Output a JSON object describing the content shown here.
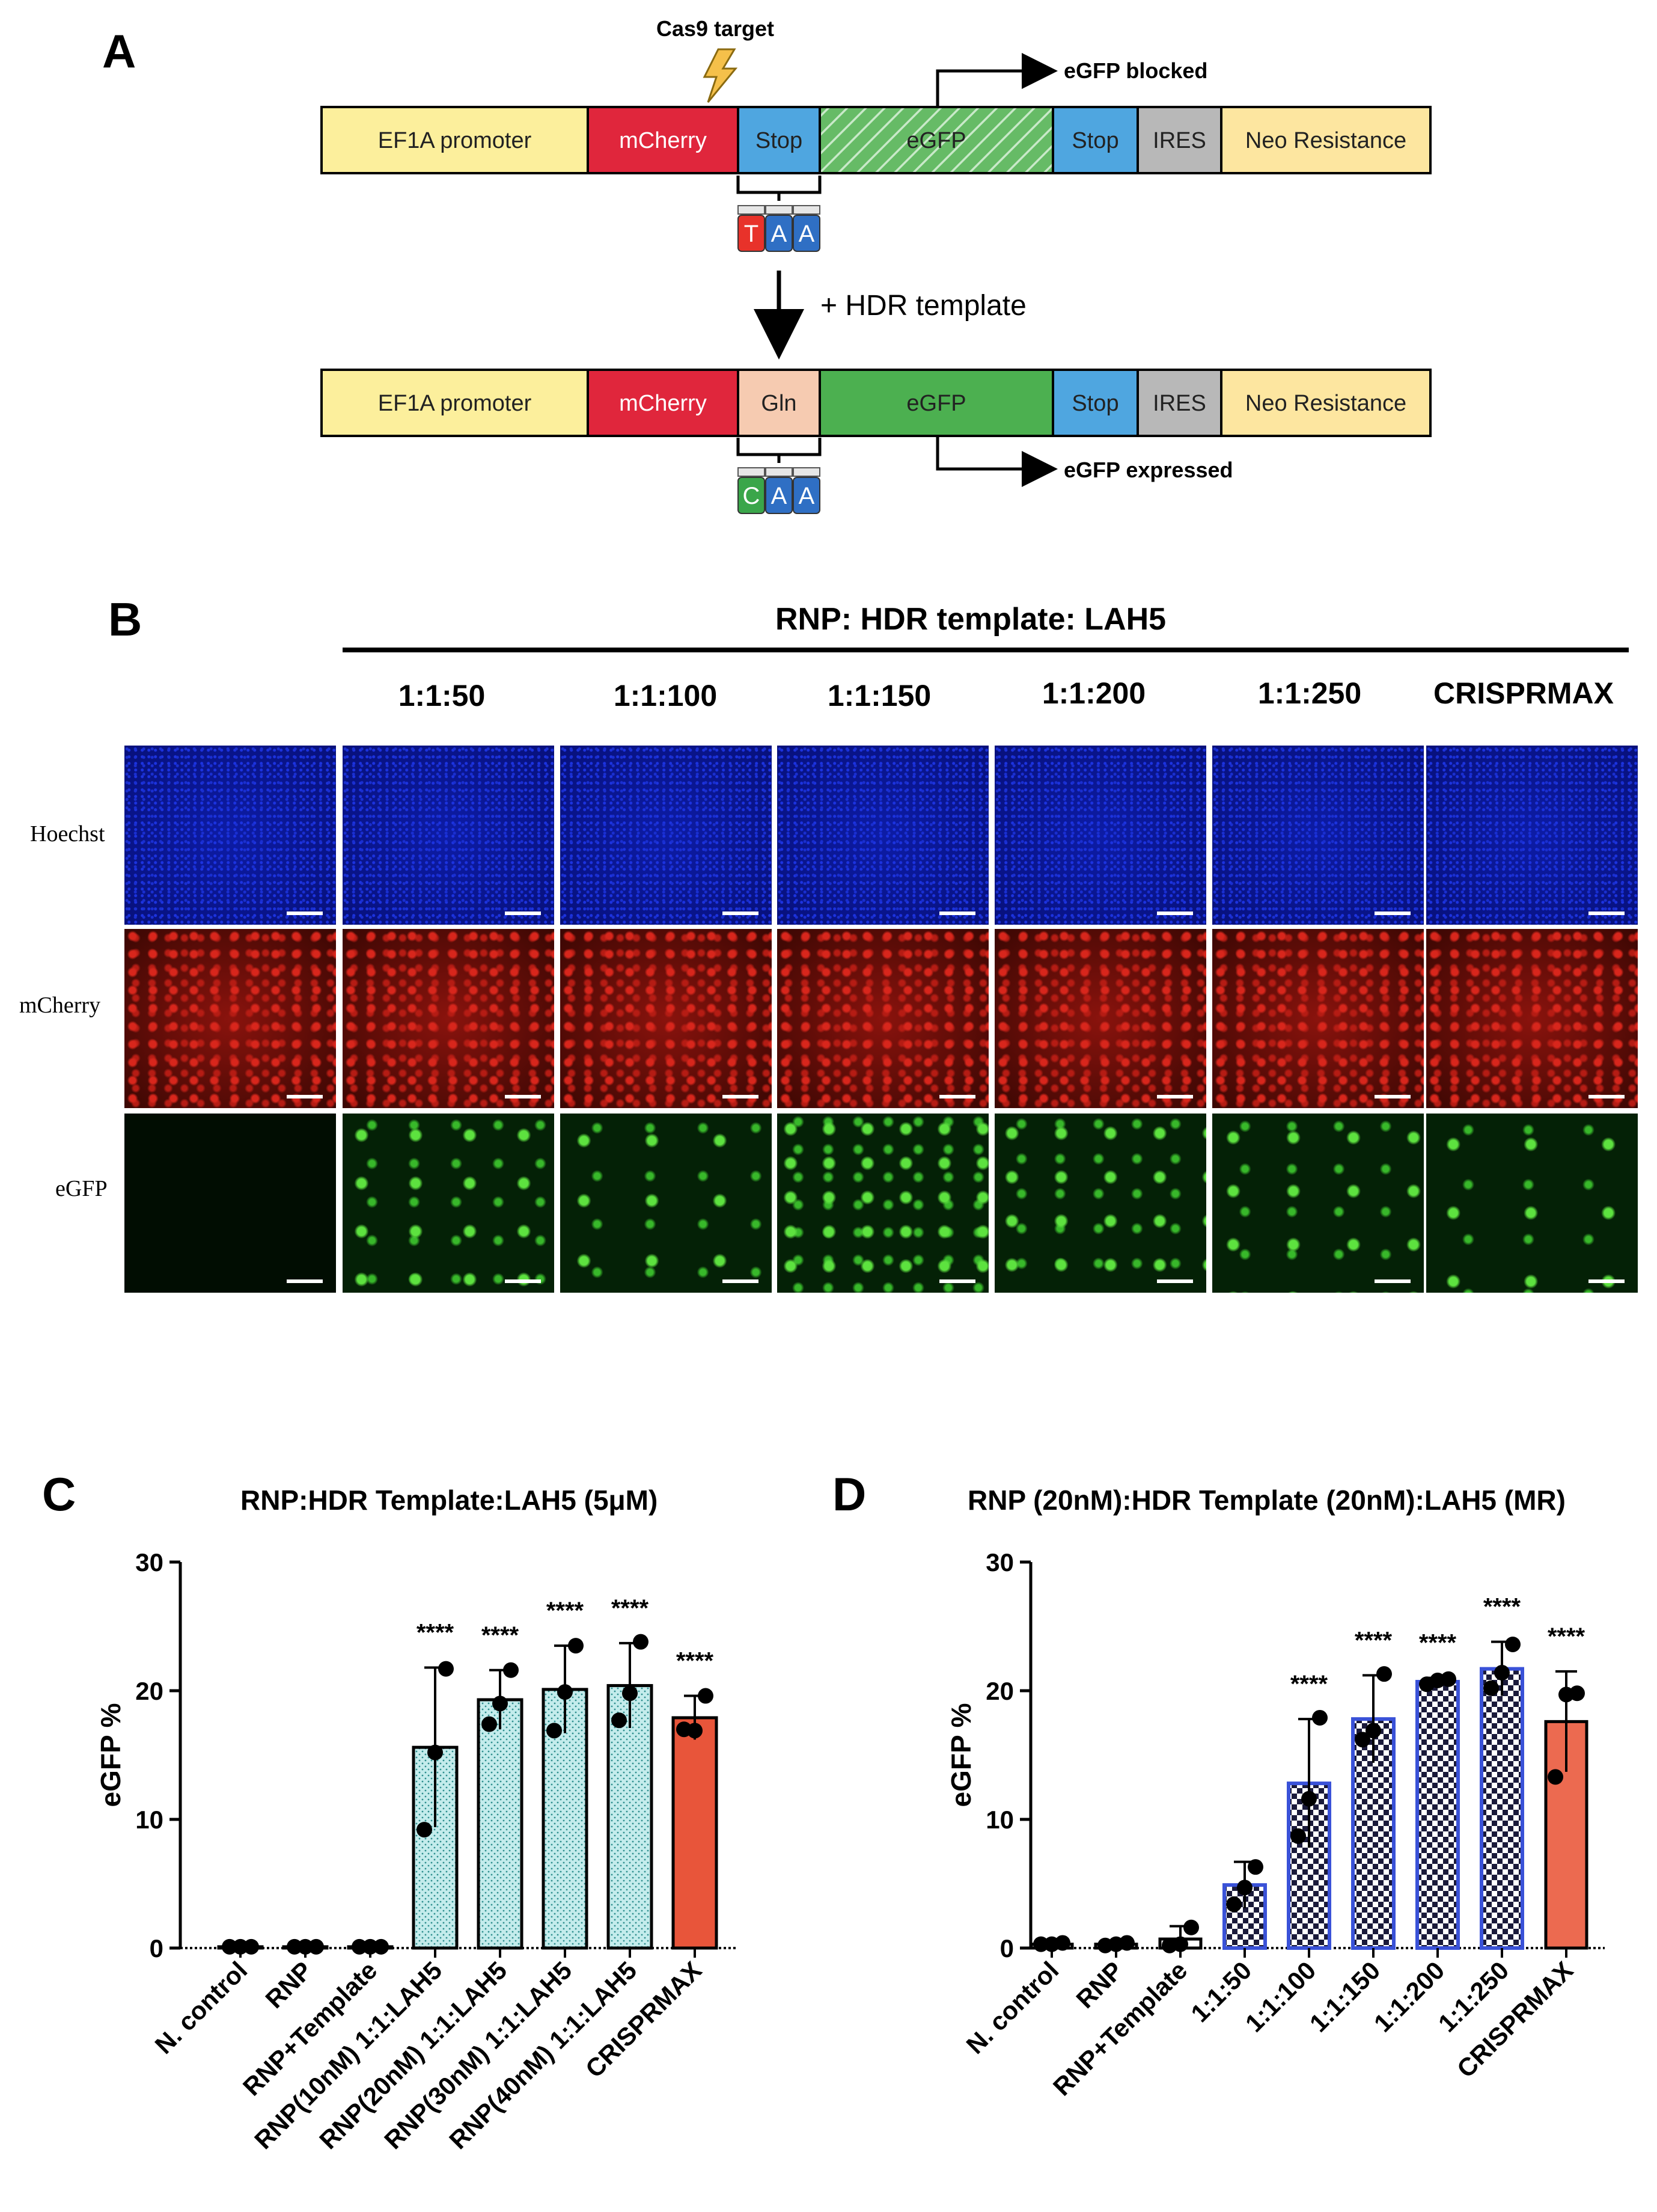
{
  "panel_a": {
    "letter": "A",
    "cas9_label": "Cas9 target",
    "hdr_label": "+ HDR template",
    "top_construct": {
      "segments": [
        {
          "label": "EF1A promoter",
          "color": "#fcef9c"
        },
        {
          "label": "mCherry",
          "color": "#e0263c"
        },
        {
          "label": "Stop",
          "color": "#4fa6e0"
        },
        {
          "label": "eGFP",
          "color": "#66bb66"
        },
        {
          "label": "Stop",
          "color": "#4fa6e0"
        },
        {
          "label": "IRES",
          "color": "#b8b8b8"
        },
        {
          "label": "Neo Resistance",
          "color": "#fde6a0"
        }
      ],
      "arrow_label": "eGFP blocked",
      "codon": [
        "T",
        "A",
        "A"
      ],
      "codon_colors": [
        "#e8322a",
        "#2f6fc4",
        "#2f6fc4"
      ]
    },
    "bottom_construct": {
      "segments": [
        {
          "label": "EF1A promoter",
          "color": "#fcef9c"
        },
        {
          "label": "mCherry",
          "color": "#e0263c"
        },
        {
          "label": "Gln",
          "color": "#f6cbb1"
        },
        {
          "label": "eGFP",
          "color": "#4cb050"
        },
        {
          "label": "Stop",
          "color": "#4fa6e0"
        },
        {
          "label": "IRES",
          "color": "#b8b8b8"
        },
        {
          "label": "Neo Resistance",
          "color": "#fde6a0"
        }
      ],
      "arrow_label": "eGFP expressed",
      "codon": [
        "C",
        "A",
        "A"
      ],
      "codon_colors": [
        "#3aa64a",
        "#2f6fc4",
        "#2f6fc4"
      ]
    }
  },
  "panel_b": {
    "letter": "B",
    "header": "RNP: HDR template: LAH5",
    "columns": [
      "1:1:50",
      "1:1:100",
      "1:1:150",
      "1:1:200",
      "1:1:250",
      "CRISPRMAX"
    ],
    "rows": [
      "Hoechst",
      "mCherry",
      "eGFP"
    ]
  },
  "panel_c": {
    "letter": "C",
    "chart_data": {
      "type": "bar",
      "title": "RNP:HDR Template:LAH5 (5μM)",
      "xlabel": "",
      "ylabel": "eGFP %",
      "ylim": [
        0,
        30
      ],
      "yticks": [
        0,
        10,
        20,
        30
      ],
      "categories": [
        "N. control",
        "RNP",
        "RNP+Template",
        "RNP(10nM) 1:1:LAH5",
        "RNP(20nM) 1:1:LAH5",
        "RNP(30nM) 1:1:LAH5",
        "RNP(40nM) 1:1:LAH5",
        "CRISPRMAX"
      ],
      "values": [
        0.1,
        0.1,
        0.1,
        15.6,
        19.3,
        20.1,
        20.4,
        17.9
      ],
      "errors": [
        0,
        0,
        0,
        6.2,
        2.3,
        3.4,
        3.3,
        1.7
      ],
      "points": [
        [
          0.1,
          0.1,
          0.1
        ],
        [
          0.1,
          0.1,
          0.1
        ],
        [
          0.1,
          0.1,
          0.1
        ],
        [
          9.2,
          15.2,
          21.7
        ],
        [
          17.4,
          19.0,
          21.6
        ],
        [
          16.9,
          19.9,
          23.5
        ],
        [
          17.7,
          19.8,
          23.8
        ],
        [
          17.0,
          16.9,
          19.6
        ]
      ],
      "significance": [
        "",
        "",
        "",
        "****",
        "****",
        "****",
        "****",
        "****"
      ],
      "bar_colors": [
        "#ffffff",
        "#ffffff",
        "#ffffff",
        "#c4ecec",
        "#c4ecec",
        "#c4ecec",
        "#c4ecec",
        "#e8553a"
      ]
    }
  },
  "panel_d": {
    "letter": "D",
    "chart_data": {
      "type": "bar",
      "title": "RNP (20nM):HDR Template (20nM):LAH5 (MR)",
      "xlabel": "",
      "ylabel": "eGFP %",
      "ylim": [
        0,
        30
      ],
      "yticks": [
        0,
        10,
        20,
        30
      ],
      "categories": [
        "N. control",
        "RNP",
        "RNP+Template",
        "1:1:50",
        "1:1:100",
        "1:1:150",
        "1:1:200",
        "1:1:250",
        "CRISPRMAX"
      ],
      "values": [
        0.3,
        0.3,
        0.7,
        4.9,
        12.8,
        17.8,
        20.7,
        21.7,
        17.6
      ],
      "errors": [
        0,
        0,
        1.0,
        1.8,
        5.0,
        3.4,
        0.3,
        2.1,
        3.9
      ],
      "points": [
        [
          0.3,
          0.3,
          0.4
        ],
        [
          0.2,
          0.3,
          0.4
        ],
        [
          0.2,
          0.3,
          1.6
        ],
        [
          3.4,
          4.7,
          6.3
        ],
        [
          8.7,
          11.6,
          17.9
        ],
        [
          16.2,
          16.9,
          21.3
        ],
        [
          20.5,
          20.8,
          20.9
        ],
        [
          20.2,
          21.4,
          23.6
        ],
        [
          13.3,
          19.7,
          19.8
        ]
      ],
      "significance": [
        "",
        "",
        "",
        "",
        "****",
        "****",
        "****",
        "****",
        "****"
      ],
      "bar_colors": [
        "#ffffff",
        "#ffffff",
        "#ffffff",
        "#3a52d8",
        "#3a52d8",
        "#3a52d8",
        "#3a52d8",
        "#3a52d8",
        "#ec6a50"
      ]
    }
  }
}
